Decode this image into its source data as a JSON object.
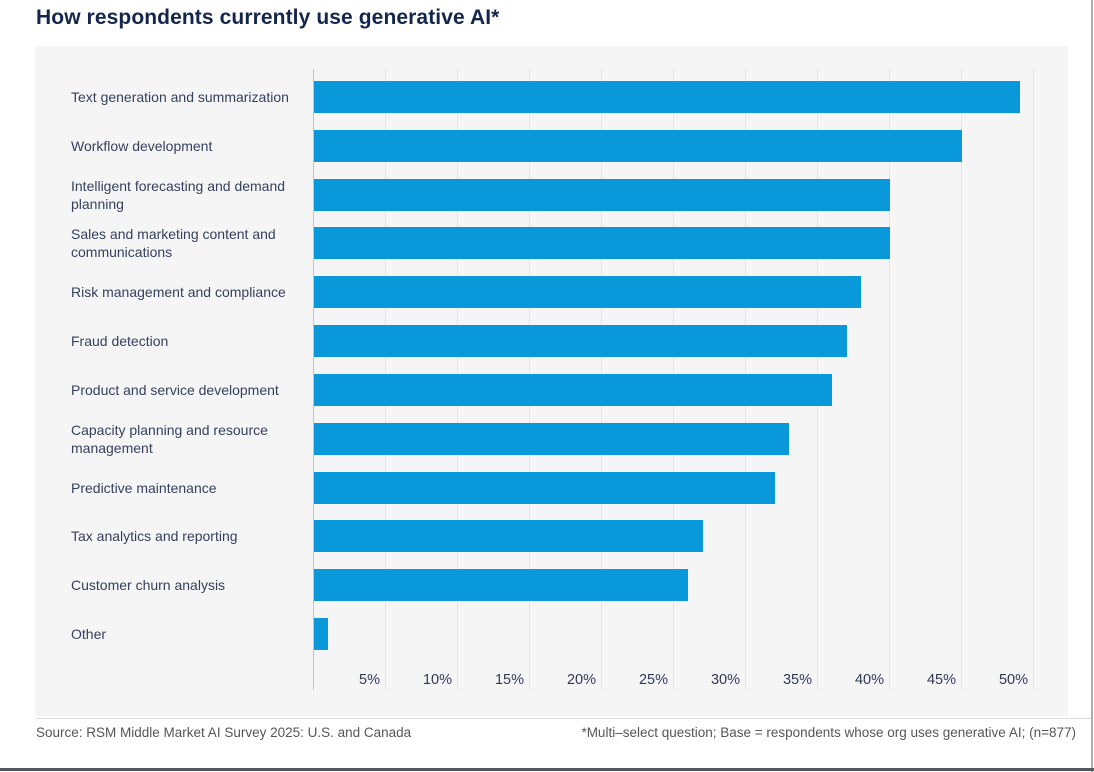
{
  "chart_data": {
    "type": "bar",
    "orientation": "horizontal",
    "title": "How respondents currently use generative AI*",
    "categories": [
      "Text generation and summarization",
      "Workflow development",
      "Intelligent forecasting and demand planning",
      "Sales and marketing content and communications",
      "Risk management and compliance",
      "Fraud detection",
      "Product and service development",
      "Capacity planning and resource management",
      "Predictive maintenance",
      "Tax analytics and reporting",
      "Customer churn analysis",
      "Other"
    ],
    "values": [
      49,
      45,
      40,
      40,
      38,
      37,
      36,
      33,
      32,
      27,
      26,
      1
    ],
    "unit": "%",
    "xlabel": "",
    "ylabel": "",
    "xlim": [
      0,
      52
    ],
    "tick_interval": 5,
    "x_ticks": [
      "5%",
      "10%",
      "15%",
      "20%",
      "25%",
      "30%",
      "35%",
      "40%",
      "45%",
      "50%"
    ],
    "grid": "vertical",
    "legend": "none"
  },
  "colors": {
    "bar": "#0999DB",
    "title_navy": "#13264D",
    "label_navy": "#35415C",
    "panel_bg": "#F5F5F5",
    "footer_gray": "#55565A"
  },
  "footer": {
    "source": "Source: RSM Middle Market AI Survey 2025: U.S. and Canada",
    "note": "*Multi–select question; Base = respondents whose org uses generative AI; (n=877)"
  }
}
